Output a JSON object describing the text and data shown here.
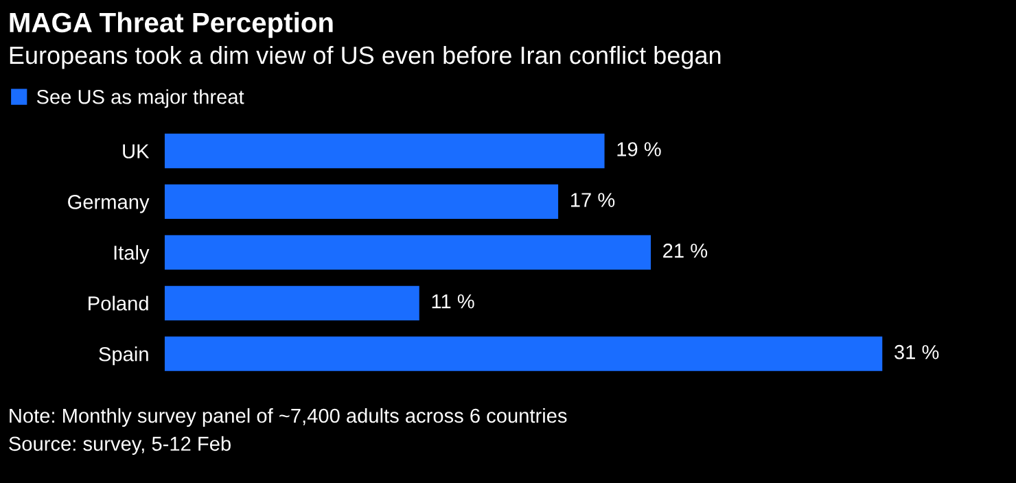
{
  "chart_data": {
    "type": "bar",
    "orientation": "horizontal",
    "title": "MAGA Threat Perception",
    "subtitle": "Europeans took a dim view of US even before Iran conflict began",
    "categories": [
      "UK",
      "Germany",
      "Italy",
      "Poland",
      "Spain"
    ],
    "series": [
      {
        "name": "See US as major threat",
        "color": "#1a6dff",
        "values": [
          19,
          17,
          21,
          11,
          31
        ],
        "value_labels": [
          "19 %",
          "17 %",
          "21 %",
          "11 %",
          "31 %"
        ]
      }
    ],
    "legend": "top left",
    "grid": false,
    "annotations": [
      "Note: Monthly survey panel of ~7,400 adults across 6 countries",
      "Source: survey, 5-12 Feb"
    ]
  }
}
